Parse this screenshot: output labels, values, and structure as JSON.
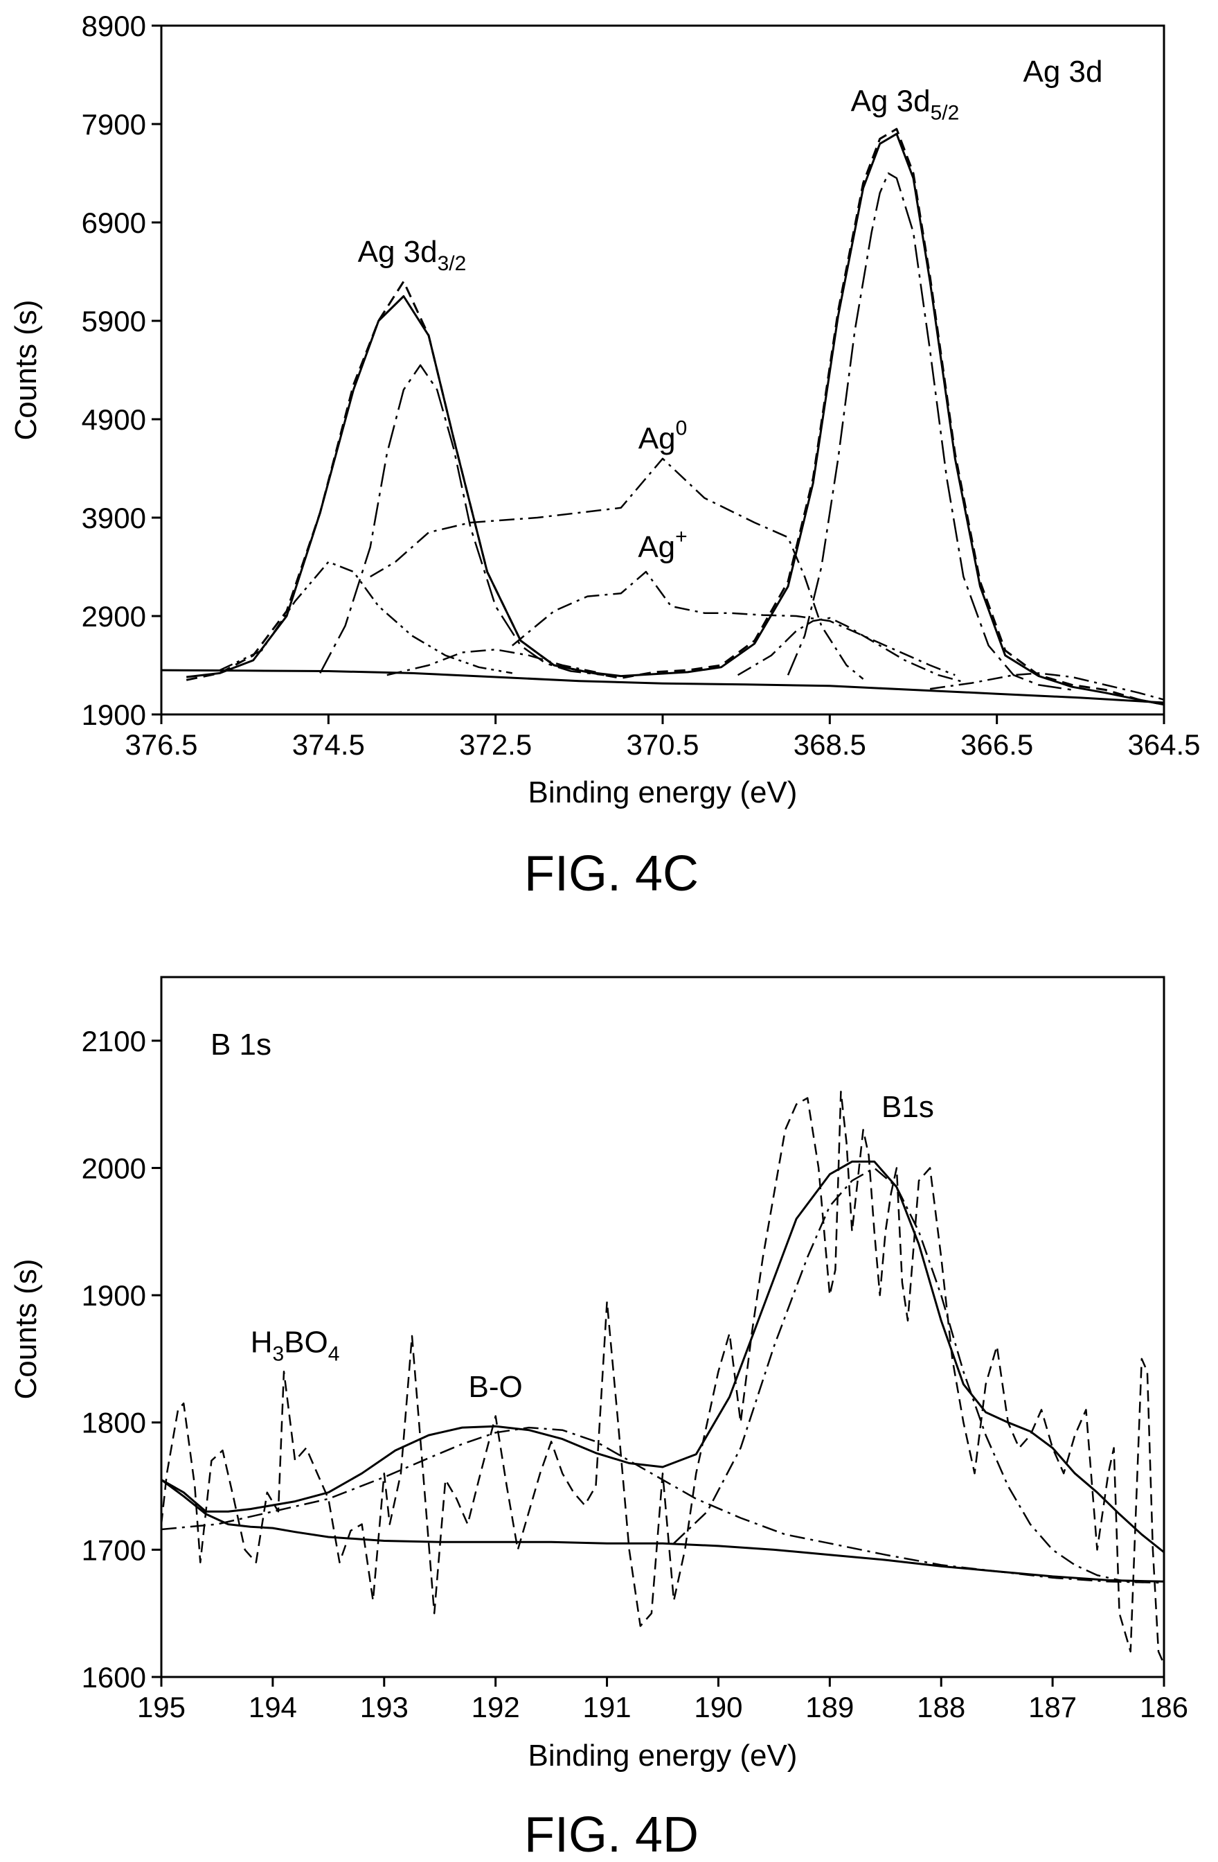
{
  "chart_data": [
    {
      "type": "line",
      "panel_label": "FIG. 4C",
      "corner_label": "Ag 3d",
      "xlabel": "Binding energy (eV)",
      "ylabel": "Counts (s)",
      "xlim": [
        376.5,
        364.5
      ],
      "ylim": [
        1900,
        8900
      ],
      "x_reversed": true,
      "x_ticks": [
        "376.5",
        "374.5",
        "372.5",
        "370.5",
        "368.5",
        "366.5",
        "364.5"
      ],
      "y_ticks": [
        "1900",
        "2900",
        "3900",
        "4900",
        "5900",
        "6900",
        "7900",
        "8900"
      ],
      "annotations": [
        {
          "base": "Ag 3d",
          "sub": "3/2",
          "sup": "",
          "x": 373.5,
          "y": 6500
        },
        {
          "base": "Ag 3d",
          "sub": "5/2",
          "sup": "",
          "x": 367.6,
          "y": 8030
        },
        {
          "base": "Ag",
          "sub": "",
          "sup": "0",
          "x": 370.5,
          "y": 4600
        },
        {
          "base": "Ag",
          "sub": "",
          "sup": "+",
          "x": 370.5,
          "y": 3500
        }
      ],
      "series": [
        {
          "style": "dashed",
          "width": 3,
          "x": [
            376.2,
            375.8,
            375.4,
            375.0,
            374.6,
            374.2,
            373.9,
            373.6,
            373.3,
            373.0,
            372.6,
            372.2,
            371.8,
            371.4,
            371.0,
            370.6,
            370.2,
            369.8,
            369.4,
            369.0,
            368.7,
            368.4,
            368.1,
            367.9,
            367.7,
            367.5,
            367.3,
            367.0,
            366.7,
            366.4,
            366.0,
            365.6,
            365.2,
            364.8,
            364.5
          ],
          "y": [
            2250,
            2320,
            2500,
            2950,
            3950,
            5250,
            5900,
            6300,
            5750,
            4700,
            3350,
            2650,
            2400,
            2330,
            2270,
            2330,
            2350,
            2400,
            2650,
            3250,
            4300,
            6000,
            7300,
            7750,
            7850,
            7400,
            6350,
            4550,
            3250,
            2550,
            2300,
            2200,
            2150,
            2050,
            2000
          ]
        },
        {
          "style": "solid",
          "width": 3,
          "x": [
            376.2,
            375.8,
            375.4,
            375.0,
            374.6,
            374.2,
            373.9,
            373.6,
            373.3,
            373.0,
            372.6,
            372.2,
            371.8,
            371.4,
            371.0,
            370.6,
            370.2,
            369.8,
            369.4,
            369.0,
            368.7,
            368.4,
            368.1,
            367.9,
            367.7,
            367.5,
            367.3,
            367.0,
            366.7,
            366.4,
            366.0,
            365.6,
            365.2,
            364.8,
            364.5
          ],
          "y": [
            2280,
            2320,
            2450,
            2900,
            3950,
            5200,
            5900,
            6150,
            5750,
            4700,
            3350,
            2650,
            2400,
            2330,
            2290,
            2310,
            2330,
            2380,
            2620,
            3200,
            4250,
            5950,
            7250,
            7700,
            7800,
            7350,
            6300,
            4500,
            3200,
            2500,
            2290,
            2180,
            2120,
            2050,
            2000
          ]
        },
        {
          "style": "solid",
          "width": 3,
          "x": [
            376.5,
            375.5,
            374.5,
            373.5,
            372.5,
            371.5,
            370.5,
            369.5,
            368.5,
            367.5,
            366.5,
            365.5,
            364.5
          ],
          "y": [
            2350,
            2345,
            2340,
            2320,
            2280,
            2240,
            2215,
            2205,
            2190,
            2150,
            2110,
            2070,
            2020
          ]
        },
        {
          "style": "longdashdot",
          "width": 2.5,
          "x": [
            374.6,
            374.3,
            374.0,
            373.8,
            373.6,
            373.4,
            373.2,
            373.0,
            372.8,
            372.5,
            372.2,
            371.9,
            371.6,
            371.2
          ],
          "y": [
            2320,
            2800,
            3600,
            4550,
            5200,
            5450,
            5200,
            4600,
            3800,
            3000,
            2600,
            2420,
            2340,
            2300
          ]
        },
        {
          "style": "longdashdot",
          "width": 2.5,
          "x": [
            369.0,
            368.8,
            368.6,
            368.4,
            368.2,
            368.0,
            367.9,
            367.8,
            367.7,
            367.5,
            367.3,
            367.1,
            366.9,
            366.6,
            366.3,
            366.0,
            365.6
          ],
          "y": [
            2300,
            2700,
            3400,
            4500,
            5800,
            6800,
            7200,
            7400,
            7350,
            6800,
            5600,
            4300,
            3300,
            2600,
            2300,
            2200,
            2150
          ]
        },
        {
          "style": "dashdotdot",
          "width": 2.5,
          "x": [
            375.8,
            375.3,
            374.9,
            374.5,
            374.2,
            373.9,
            373.5,
            373.1,
            372.7,
            372.3
          ],
          "y": [
            2350,
            2550,
            3050,
            3450,
            3350,
            3000,
            2700,
            2500,
            2380,
            2320
          ]
        },
        {
          "style": "dashdot",
          "width": 2.5,
          "x": [
            374.0,
            373.7,
            373.3,
            372.8,
            372.0,
            371.0,
            370.5,
            370.0,
            369.4,
            369.0,
            368.8,
            368.6,
            368.3,
            368.1
          ],
          "y": [
            3300,
            3450,
            3750,
            3850,
            3900,
            4000,
            4500,
            4100,
            3850,
            3700,
            3300,
            2800,
            2400,
            2260
          ]
        },
        {
          "style": "dashdot",
          "width": 2.5,
          "x": [
            372.3,
            371.8,
            371.4,
            371.0,
            370.7,
            370.4,
            370.0,
            369.7,
            369.3,
            368.9,
            368.5,
            368.1,
            367.7,
            367.3,
            367.0
          ],
          "y": [
            2600,
            2950,
            3100,
            3130,
            3350,
            3000,
            2930,
            2930,
            2910,
            2900,
            2850,
            2700,
            2550,
            2400,
            2300
          ]
        },
        {
          "style": "dashdot",
          "width": 2.5,
          "x": [
            373.8,
            373.3,
            372.9,
            372.5,
            372.1,
            371.7,
            371.3
          ],
          "y": [
            2300,
            2400,
            2530,
            2560,
            2500,
            2400,
            2330
          ]
        },
        {
          "style": "dashdot",
          "width": 2.5,
          "x": [
            369.6,
            369.2,
            368.9,
            368.7,
            368.5,
            368.3,
            368.0,
            367.6,
            367.2,
            366.9
          ],
          "y": [
            2300,
            2500,
            2750,
            2850,
            2880,
            2800,
            2650,
            2450,
            2300,
            2230
          ]
        },
        {
          "style": "dashdot",
          "width": 2.5,
          "x": [
            367.3,
            366.8,
            366.3,
            366.0,
            365.6,
            365.2,
            364.8,
            364.5
          ],
          "y": [
            2160,
            2220,
            2300,
            2320,
            2280,
            2200,
            2120,
            2050
          ]
        }
      ]
    },
    {
      "type": "line",
      "panel_label": "FIG. 4D",
      "corner_label": "B 1s",
      "xlabel": "Binding energy (eV)",
      "ylabel": "Counts (s)",
      "xlim": [
        195,
        186
      ],
      "ylim": [
        1600,
        2150
      ],
      "x_reversed": true,
      "x_ticks": [
        "195",
        "194",
        "193",
        "192",
        "191",
        "190",
        "189",
        "188",
        "187",
        "186"
      ],
      "y_ticks": [
        "1600",
        "1700",
        "1800",
        "1900",
        "2000",
        "2100"
      ],
      "annotations": [
        {
          "base": "B1s",
          "sub": "",
          "sup": "",
          "x": 188.3,
          "y": 2040
        },
        {
          "base": "B-O",
          "sub": "",
          "sup": "",
          "x": 192.0,
          "y": 1820
        },
        {
          "base": "H",
          "sub": "3",
          "sup": "",
          "x2": "BO",
          "sub2": "4",
          "x": 193.8,
          "y": 1855
        }
      ],
      "series": [
        {
          "style": "dashed",
          "width": 2.5,
          "x": [
            195.0,
            194.95,
            194.85,
            194.8,
            194.7,
            194.65,
            194.55,
            194.45,
            194.35,
            194.25,
            194.15,
            194.05,
            193.95,
            193.9,
            193.8,
            193.7,
            193.6,
            193.5,
            193.4,
            193.3,
            193.2,
            193.1,
            193.0,
            192.95,
            192.85,
            192.75,
            192.65,
            192.55,
            192.45,
            192.35,
            192.25,
            192.15,
            192.0,
            191.9,
            191.8,
            191.7,
            191.6,
            191.5,
            191.4,
            191.3,
            191.2,
            191.1,
            191.0,
            190.9,
            190.8,
            190.7,
            190.6,
            190.5,
            190.4,
            190.3,
            190.2,
            190.1,
            190.0,
            189.9,
            189.8,
            189.7,
            189.6,
            189.5,
            189.4,
            189.3,
            189.2,
            189.1,
            189.0,
            188.95,
            188.9,
            188.85,
            188.8,
            188.75,
            188.7,
            188.65,
            188.6,
            188.55,
            188.5,
            188.45,
            188.4,
            188.35,
            188.3,
            188.2,
            188.1,
            188.0,
            187.9,
            187.8,
            187.7,
            187.6,
            187.5,
            187.4,
            187.3,
            187.2,
            187.1,
            187.0,
            186.9,
            186.8,
            186.7,
            186.6,
            186.5,
            186.45,
            186.4,
            186.3,
            186.2,
            186.15,
            186.1,
            186.05,
            186.0
          ],
          "y": [
            1720,
            1760,
            1810,
            1815,
            1750,
            1690,
            1770,
            1778,
            1740,
            1700,
            1690,
            1745,
            1730,
            1840,
            1770,
            1780,
            1760,
            1740,
            1690,
            1715,
            1720,
            1660,
            1760,
            1720,
            1760,
            1868,
            1760,
            1650,
            1755,
            1740,
            1720,
            1755,
            1805,
            1750,
            1700,
            1730,
            1760,
            1785,
            1760,
            1745,
            1735,
            1750,
            1895,
            1800,
            1700,
            1640,
            1650,
            1760,
            1660,
            1700,
            1760,
            1800,
            1840,
            1870,
            1800,
            1870,
            1930,
            1980,
            2030,
            2050,
            2055,
            2000,
            1900,
            1920,
            2060,
            2020,
            1950,
            1990,
            2030,
            2010,
            1950,
            1900,
            1950,
            1980,
            2000,
            1910,
            1880,
            1990,
            2000,
            1930,
            1850,
            1800,
            1760,
            1830,
            1860,
            1800,
            1780,
            1790,
            1810,
            1780,
            1760,
            1790,
            1810,
            1700,
            1760,
            1780,
            1650,
            1620,
            1850,
            1840,
            1700,
            1620,
            1610
          ]
        },
        {
          "style": "solid",
          "width": 3,
          "x": [
            195.0,
            194.8,
            194.6,
            194.4,
            194.2,
            194.0,
            193.8,
            193.5,
            193.2,
            192.9,
            192.6,
            192.3,
            192.0,
            191.7,
            191.4,
            191.1,
            190.8,
            190.5,
            190.2,
            189.9,
            189.6,
            189.3,
            189.0,
            188.8,
            188.6,
            188.4,
            188.2,
            188.0,
            187.8,
            187.6,
            187.4,
            187.2,
            187.0,
            186.8,
            186.6,
            186.4,
            186.2,
            186.0
          ],
          "y": [
            1755,
            1745,
            1730,
            1730,
            1732,
            1735,
            1738,
            1745,
            1760,
            1778,
            1790,
            1796,
            1797,
            1794,
            1787,
            1776,
            1768,
            1765,
            1775,
            1820,
            1890,
            1960,
            1995,
            2005,
            2005,
            1985,
            1940,
            1880,
            1830,
            1808,
            1800,
            1793,
            1780,
            1760,
            1745,
            1728,
            1712,
            1698
          ]
        },
        {
          "style": "solid",
          "width": 3,
          "x": [
            195.0,
            194.8,
            194.6,
            194.4,
            194.2,
            194.0,
            193.8,
            193.5,
            193.0,
            192.5,
            192.0,
            191.5,
            191.0,
            190.5,
            190.0,
            189.5,
            189.0,
            188.5,
            188.0,
            187.5,
            187.0,
            186.5,
            186.0
          ],
          "y": [
            1755,
            1742,
            1728,
            1720,
            1718,
            1717,
            1714,
            1710,
            1707,
            1706,
            1706,
            1706,
            1705,
            1705,
            1703,
            1700,
            1696,
            1692,
            1687,
            1683,
            1679,
            1676,
            1675
          ]
        },
        {
          "style": "dashdot",
          "width": 2.5,
          "x": [
            195.0,
            194.5,
            194.0,
            193.5,
            193.0,
            192.6,
            192.3,
            192.0,
            191.7,
            191.4,
            191.1,
            190.8,
            190.5,
            190.2,
            189.8,
            189.4,
            189.0,
            188.5,
            188.0,
            187.5,
            187.0,
            186.5,
            186.0
          ],
          "y": [
            1716,
            1720,
            1730,
            1740,
            1757,
            1772,
            1783,
            1792,
            1796,
            1794,
            1785,
            1770,
            1755,
            1740,
            1725,
            1712,
            1705,
            1696,
            1688,
            1683,
            1678,
            1675,
            1674
          ]
        },
        {
          "style": "dashdot",
          "width": 2.5,
          "x": [
            190.4,
            190.1,
            189.8,
            189.5,
            189.2,
            189.0,
            188.8,
            188.6,
            188.4,
            188.2,
            188.0,
            187.8,
            187.6,
            187.4,
            187.2,
            187.0,
            186.8,
            186.6,
            186.4,
            186.2
          ],
          "y": [
            1705,
            1730,
            1780,
            1860,
            1930,
            1970,
            1990,
            2000,
            1985,
            1950,
            1900,
            1840,
            1790,
            1750,
            1720,
            1700,
            1688,
            1680,
            1676,
            1674
          ]
        }
      ]
    }
  ]
}
